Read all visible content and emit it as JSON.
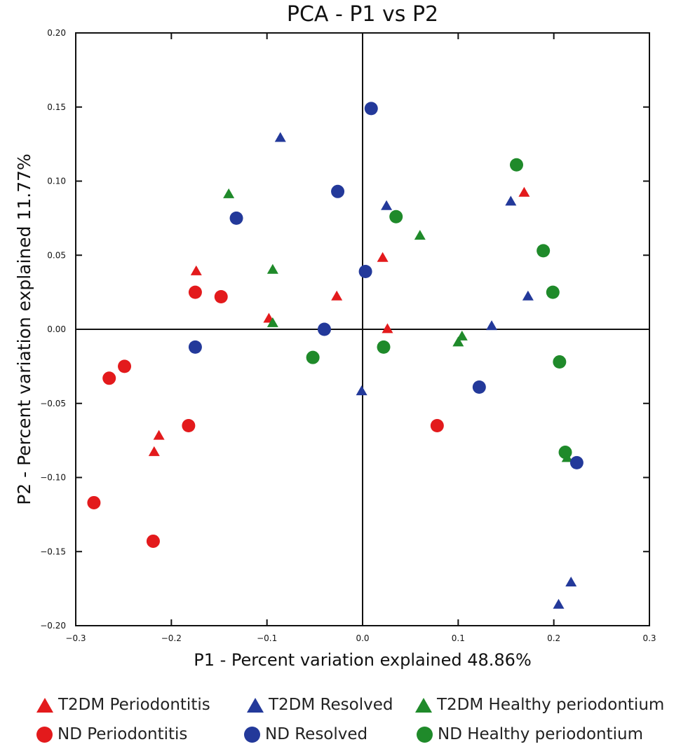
{
  "chart_data": {
    "type": "scatter",
    "title": "PCA - P1 vs P2",
    "xlabel": "P1 - Percent variation explained 48.86%",
    "ylabel": "P2 - Percent variation explained 11.77%",
    "xlim": [
      -0.3,
      0.3
    ],
    "ylim": [
      -0.2,
      0.2
    ],
    "xticks": [
      "−0.3",
      "−0.2",
      "−0.1",
      "0.0",
      "0.1",
      "0.2",
      "0.3"
    ],
    "yticks": [
      "0.20",
      "0.15",
      "0.10",
      "0.05",
      "0.00",
      "−0.05",
      "−0.10",
      "−0.15",
      "−0.20"
    ],
    "grid": false,
    "series": [
      {
        "name": "T2DM Periodontitis",
        "marker": "triangle",
        "color": "#e31a1c",
        "points": [
          [
            -0.174,
            0.039
          ],
          [
            -0.098,
            0.007
          ],
          [
            -0.027,
            0.022
          ],
          [
            0.021,
            0.048
          ],
          [
            0.026,
            0.0
          ],
          [
            0.169,
            0.092
          ],
          [
            -0.213,
            -0.072
          ],
          [
            -0.218,
            -0.083
          ]
        ]
      },
      {
        "name": "T2DM Resolved",
        "marker": "triangle",
        "color": "#23399a",
        "points": [
          [
            -0.086,
            0.129
          ],
          [
            0.025,
            0.083
          ],
          [
            0.155,
            0.086
          ],
          [
            0.173,
            0.022
          ],
          [
            0.135,
            0.002
          ],
          [
            -0.001,
            -0.042
          ],
          [
            0.218,
            -0.171
          ],
          [
            0.205,
            -0.186
          ]
        ]
      },
      {
        "name": "T2DM Healthy periodontium",
        "marker": "triangle",
        "color": "#1f8a2a",
        "points": [
          [
            -0.14,
            0.091
          ],
          [
            -0.094,
            0.04
          ],
          [
            -0.094,
            0.004
          ],
          [
            0.06,
            0.063
          ],
          [
            0.1,
            -0.009
          ],
          [
            0.104,
            -0.005
          ],
          [
            0.214,
            -0.087
          ]
        ]
      },
      {
        "name": "ND Periodontitis",
        "marker": "circle",
        "color": "#e31a1c",
        "points": [
          [
            -0.175,
            0.025
          ],
          [
            -0.148,
            0.022
          ],
          [
            -0.249,
            -0.025
          ],
          [
            -0.265,
            -0.033
          ],
          [
            -0.182,
            -0.065
          ],
          [
            -0.281,
            -0.117
          ],
          [
            -0.219,
            -0.143
          ],
          [
            0.078,
            -0.065
          ]
        ]
      },
      {
        "name": "ND Resolved",
        "marker": "circle",
        "color": "#23399a",
        "points": [
          [
            0.009,
            0.149
          ],
          [
            -0.026,
            0.093
          ],
          [
            -0.132,
            0.075
          ],
          [
            0.003,
            0.039
          ],
          [
            -0.04,
            0.0
          ],
          [
            -0.175,
            -0.012
          ],
          [
            0.122,
            -0.039
          ],
          [
            0.224,
            -0.09
          ]
        ]
      },
      {
        "name": "ND Healthy periodontium",
        "marker": "circle",
        "color": "#1f8a2a",
        "points": [
          [
            0.161,
            0.111
          ],
          [
            0.035,
            0.076
          ],
          [
            0.189,
            0.053
          ],
          [
            0.199,
            0.025
          ],
          [
            0.022,
            -0.012
          ],
          [
            -0.052,
            -0.019
          ],
          [
            0.206,
            -0.022
          ],
          [
            0.212,
            -0.083
          ]
        ]
      }
    ]
  },
  "legend": {
    "items": [
      {
        "label": "T2DM Periodontitis",
        "marker": "triangle",
        "color": "#e31a1c"
      },
      {
        "label": "T2DM Resolved",
        "marker": "triangle",
        "color": "#23399a"
      },
      {
        "label": "T2DM Healthy periodontium",
        "marker": "triangle",
        "color": "#1f8a2a"
      },
      {
        "label": "ND Periodontitis",
        "marker": "circle",
        "color": "#e31a1c"
      },
      {
        "label": "ND Resolved",
        "marker": "circle",
        "color": "#23399a"
      },
      {
        "label": "ND Healthy periodontium",
        "marker": "circle",
        "color": "#1f8a2a"
      }
    ]
  }
}
